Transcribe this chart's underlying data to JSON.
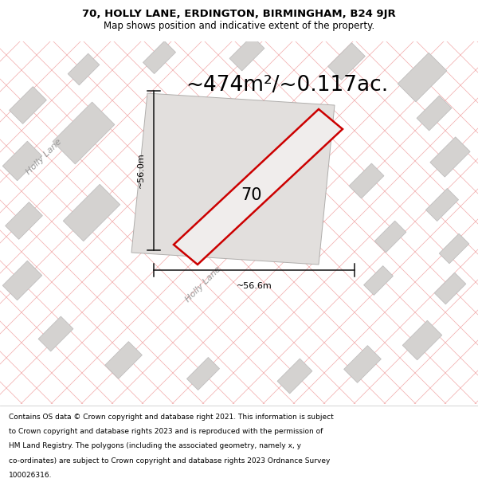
{
  "title_line1": "70, HOLLY LANE, ERDINGTON, BIRMINGHAM, B24 9JR",
  "title_line2": "Map shows position and indicative extent of the property.",
  "area_text": "~474m²/~0.117ac.",
  "label_70": "70",
  "dim_vertical": "~56.0m",
  "dim_horizontal": "~56.6m",
  "street_label1": "Holly Lane",
  "street_label2": "Holly Lane",
  "footer_lines": [
    "Contains OS data © Crown copyright and database right 2021. This information is subject",
    "to Crown copyright and database rights 2023 and is reproduced with the permission of",
    "HM Land Registry. The polygons (including the associated geometry, namely x, y",
    "co-ordinates) are subject to Crown copyright and database rights 2023 Ordnance Survey",
    "100026316."
  ],
  "map_bg": "#edecea",
  "building_fill": "#d4d2d0",
  "building_edge": "#c0bebe",
  "road_line_color": "#f0a0a0",
  "red_outline_color": "#cc0000",
  "dim_line_color": "#111111",
  "title_fontsize": 9.5,
  "subtitle_fontsize": 8.5,
  "area_fontsize": 19,
  "label_fontsize": 15,
  "dim_fontsize": 8,
  "street_fontsize": 8,
  "footer_fontsize": 6.5
}
